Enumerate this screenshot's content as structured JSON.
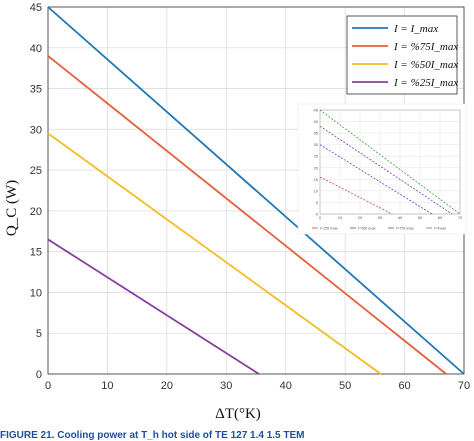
{
  "chart_data": [
    {
      "type": "line",
      "xlabel": "ΔT(°K)",
      "ylabel": "Q_C (W)",
      "xlim": [
        0,
        70
      ],
      "ylim": [
        0,
        45
      ],
      "x_ticks": [
        0,
        10,
        20,
        30,
        40,
        50,
        60,
        70
      ],
      "y_ticks": [
        0,
        5,
        10,
        15,
        20,
        25,
        30,
        35,
        40,
        45
      ],
      "grid": true,
      "legend_position": "top-right",
      "series": [
        {
          "name": "I = I_max",
          "color": "#1f77b4",
          "x": [
            0,
            70
          ],
          "y": [
            45,
            0
          ]
        },
        {
          "name": "I = %75I_max",
          "color": "#e2603a",
          "x": [
            0,
            67
          ],
          "y": [
            39,
            0
          ]
        },
        {
          "name": "I = %50I_max",
          "color": "#f2bd25",
          "x": [
            0,
            56
          ],
          "y": [
            29.5,
            0
          ]
        },
        {
          "name": "I = %25I_max",
          "color": "#8a3fa0",
          "x": [
            0,
            35.5
          ],
          "y": [
            16.5,
            0
          ]
        }
      ]
    },
    {
      "type": "line",
      "xlim": [
        0,
        70
      ],
      "ylim": [
        0,
        45
      ],
      "x_ticks": [
        0,
        10,
        20,
        30,
        40,
        50,
        60,
        70
      ],
      "y_ticks": [
        0,
        5,
        10,
        15,
        20,
        25,
        30,
        35,
        40,
        45
      ],
      "grid": true,
      "series": [
        {
          "color": "#3aa03a",
          "x": [
            0,
            70
          ],
          "y": [
            45,
            0
          ]
        },
        {
          "color": "#7a3fa0",
          "x": [
            0,
            66
          ],
          "y": [
            38,
            0
          ]
        },
        {
          "color": "#4a4ac8",
          "x": [
            0,
            56
          ],
          "y": [
            30,
            0
          ]
        },
        {
          "color": "#d04a4a",
          "x": [
            0,
            36
          ],
          "y": [
            16,
            0
          ]
        }
      ],
      "legend": [
        "I=25I max",
        "I=50I max",
        "I=75I max",
        "I=Imax"
      ]
    }
  ],
  "caption": "FIGURE 21. Cooling power at T_h hot side of TE 127 1.4 1.5 TEM"
}
